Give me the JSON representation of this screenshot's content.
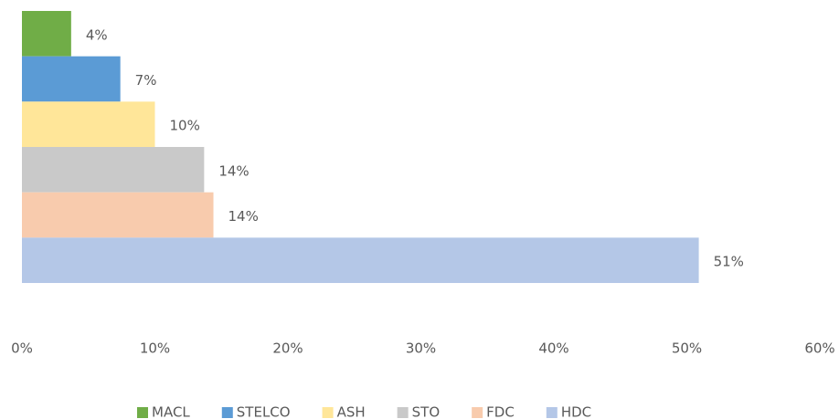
{
  "chart_data": {
    "type": "bar",
    "orientation": "horizontal",
    "series": [
      {
        "name": "MACL",
        "color": "#70ad47",
        "values": [
          3.7
        ],
        "value_labels": [
          "4%"
        ]
      },
      {
        "name": "STELCO",
        "color": "#5b9bd5",
        "values": [
          7.4
        ],
        "value_labels": [
          "7%"
        ]
      },
      {
        "name": "ASH",
        "color": "#ffe699",
        "values": [
          10
        ],
        "value_labels": [
          "10%"
        ]
      },
      {
        "name": "STO",
        "color": "#c9c9c9",
        "values": [
          13.7
        ],
        "value_labels": [
          "14%"
        ]
      },
      {
        "name": "FDC",
        "color": "#f8cbad",
        "values": [
          14.4
        ],
        "value_labels": [
          "14%"
        ]
      },
      {
        "name": "HDC",
        "color": "#b4c7e7",
        "values": [
          50.9
        ],
        "value_labels": [
          "51%"
        ]
      }
    ],
    "xlim": [
      0,
      60
    ],
    "xticks": [
      {
        "value": 0,
        "label": "0%"
      },
      {
        "value": 10,
        "label": "10%"
      },
      {
        "value": 20,
        "label": "20%"
      },
      {
        "value": 30,
        "label": "30%"
      },
      {
        "value": 40,
        "label": "40%"
      },
      {
        "value": 50,
        "label": "50%"
      },
      {
        "value": 60,
        "label": "60%"
      }
    ],
    "legend": "bottom"
  }
}
